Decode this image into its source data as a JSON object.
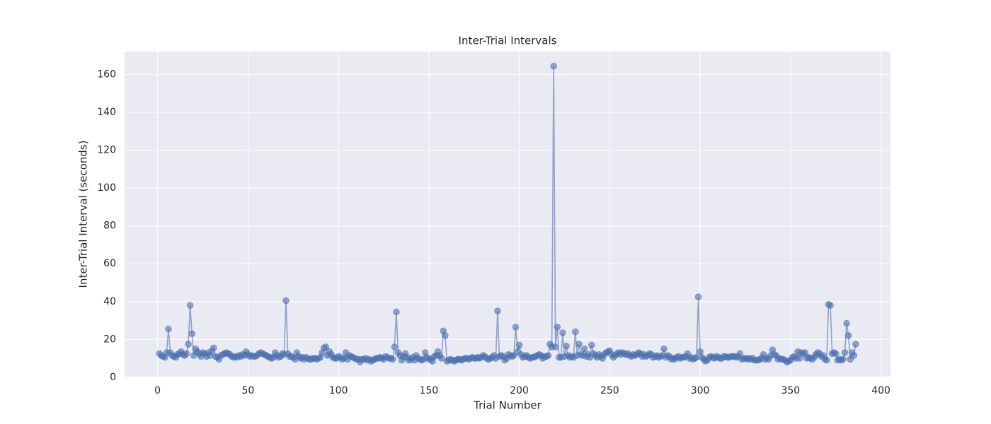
{
  "chart_data": {
    "type": "line",
    "title": "Inter-Trial Intervals",
    "x_label": "Trial Number",
    "y_label": "Inter-Trial Interval (seconds)",
    "xlim": [
      -18.25,
      405.25
    ],
    "ylim": [
      0.3,
      172.2
    ],
    "xticks": [
      0,
      50,
      100,
      150,
      200,
      250,
      300,
      350,
      400
    ],
    "yticks": [
      0,
      20,
      40,
      60,
      80,
      100,
      120,
      140,
      160
    ],
    "grid": true,
    "background": "#eaeaf2",
    "x": [
      1,
      2,
      3,
      4,
      5,
      6,
      7,
      8,
      9,
      10,
      11,
      12,
      13,
      14,
      15,
      16,
      17,
      18,
      19,
      20,
      21,
      22,
      23,
      24,
      25,
      26,
      27,
      28,
      29,
      30,
      31,
      32,
      33,
      34,
      35,
      36,
      37,
      38,
      39,
      40,
      41,
      42,
      43,
      44,
      45,
      46,
      47,
      48,
      49,
      50,
      51,
      52,
      53,
      54,
      55,
      56,
      57,
      58,
      59,
      60,
      61,
      62,
      63,
      64,
      65,
      66,
      67,
      68,
      69,
      70,
      71,
      72,
      73,
      74,
      75,
      76,
      77,
      78,
      79,
      80,
      81,
      82,
      83,
      84,
      85,
      86,
      87,
      88,
      89,
      90,
      91,
      92,
      93,
      94,
      95,
      96,
      97,
      98,
      99,
      100,
      101,
      102,
      103,
      104,
      105,
      106,
      107,
      108,
      109,
      110,
      111,
      112,
      113,
      114,
      115,
      116,
      117,
      118,
      119,
      120,
      121,
      122,
      123,
      124,
      125,
      126,
      127,
      128,
      129,
      130,
      131,
      132,
      133,
      134,
      135,
      136,
      137,
      138,
      139,
      140,
      141,
      142,
      143,
      144,
      145,
      146,
      147,
      148,
      149,
      150,
      151,
      152,
      153,
      154,
      155,
      156,
      157,
      158,
      159,
      160,
      161,
      162,
      163,
      164,
      165,
      166,
      167,
      168,
      169,
      170,
      171,
      172,
      173,
      174,
      175,
      176,
      177,
      178,
      179,
      180,
      181,
      182,
      183,
      184,
      185,
      186,
      187,
      188,
      189,
      190,
      191,
      192,
      193,
      194,
      195,
      196,
      197,
      198,
      199,
      200,
      201,
      202,
      203,
      204,
      205,
      206,
      207,
      208,
      209,
      210,
      211,
      212,
      213,
      214,
      215,
      216,
      217,
      218,
      219,
      220,
      221,
      222,
      223,
      224,
      225,
      226,
      227,
      228,
      229,
      230,
      231,
      232,
      233,
      234,
      235,
      236,
      237,
      238,
      239,
      240,
      241,
      242,
      243,
      244,
      245,
      246,
      247,
      248,
      249,
      250,
      251,
      252,
      253,
      254,
      255,
      256,
      257,
      258,
      259,
      260,
      261,
      262,
      263,
      264,
      265,
      266,
      267,
      268,
      269,
      270,
      271,
      272,
      273,
      274,
      275,
      276,
      277,
      278,
      279,
      280,
      281,
      282,
      283,
      284,
      285,
      286,
      287,
      288,
      289,
      290,
      291,
      292,
      293,
      294,
      295,
      296,
      297,
      298,
      299,
      300,
      301,
      302,
      303,
      304,
      305,
      306,
      307,
      308,
      309,
      310,
      311,
      312,
      313,
      314,
      315,
      316,
      317,
      318,
      319,
      320,
      321,
      322,
      323,
      324,
      325,
      326,
      327,
      328,
      329,
      330,
      331,
      332,
      333,
      334,
      335,
      336,
      337,
      338,
      339,
      340,
      341,
      342,
      343,
      344,
      345,
      346,
      347,
      348,
      349,
      350,
      351,
      352,
      353,
      354,
      355,
      356,
      357,
      358,
      359,
      360,
      361,
      362,
      363,
      364,
      365,
      366,
      367,
      368,
      369,
      370,
      371,
      372,
      373,
      374,
      375,
      376,
      377,
      378,
      379,
      380,
      381,
      382,
      383,
      384,
      385,
      386
    ],
    "series": [
      {
        "color": "#4c72b0",
        "values": [
          12.5,
          11.5,
          11,
          10.5,
          13,
          25.5,
          13,
          11.5,
          11,
          10.5,
          12,
          12.5,
          13.5,
          12,
          11.5,
          12.5,
          17.5,
          38,
          23,
          11.5,
          15,
          13.5,
          12.5,
          11,
          13,
          12.5,
          11,
          13,
          11.5,
          14,
          15.5,
          11,
          10.5,
          9.5,
          11.5,
          12,
          12.5,
          13,
          12.5,
          12,
          11,
          10.5,
          11,
          10.5,
          11.5,
          11,
          12,
          11.5,
          13.5,
          12,
          11,
          11.5,
          11,
          11,
          11.5,
          12.5,
          13,
          12.5,
          12,
          11.5,
          11,
          10.5,
          10,
          10.5,
          13,
          11.5,
          10.5,
          11,
          12.5,
          12,
          40.5,
          12.5,
          11,
          11,
          10.5,
          9.5,
          13,
          11,
          10,
          10.5,
          9.5,
          10.5,
          10,
          9.5,
          9.5,
          10,
          10,
          9.5,
          10,
          10.5,
          13,
          15.5,
          16,
          11.5,
          13.5,
          12,
          10.5,
          10,
          10,
          11,
          10.5,
          9.5,
          10,
          13,
          9.5,
          11.5,
          11,
          10.5,
          10,
          9.5,
          9.5,
          8,
          9.5,
          9.5,
          10,
          9,
          9.5,
          8.5,
          9,
          9.5,
          10,
          10,
          10.5,
          10,
          9.5,
          11,
          10.5,
          10,
          10,
          9.5,
          16,
          34.5,
          13,
          11.5,
          9,
          11,
          12.5,
          10.5,
          9,
          9.5,
          10.5,
          9,
          11.5,
          10,
          9.5,
          9,
          9.5,
          13,
          10.5,
          9.5,
          9.5,
          8.5,
          11,
          11.5,
          13.5,
          11.5,
          10,
          24.5,
          22,
          8.5,
          9,
          9.5,
          9,
          8.5,
          9,
          9.5,
          9.5,
          9,
          9.5,
          10,
          10,
          9.5,
          10,
          10.5,
          10,
          10,
          10.5,
          10,
          10.5,
          11.5,
          11,
          10,
          9.5,
          10,
          10.5,
          11.5,
          10,
          35,
          11,
          11.5,
          11,
          9,
          10,
          12,
          11.5,
          11,
          11.5,
          26.5,
          13.5,
          17,
          12,
          10.5,
          11,
          11.5,
          10.5,
          10,
          10.5,
          10.5,
          11,
          11.5,
          12,
          11.5,
          10,
          11,
          11,
          11.5,
          17.5,
          16,
          164.5,
          16,
          26.5,
          10.5,
          10.5,
          23.5,
          11,
          16.5,
          11.5,
          10.5,
          11,
          10.5,
          24,
          11.5,
          17.5,
          12,
          11.5,
          15,
          11,
          12,
          10.5,
          17,
          12.5,
          11.5,
          10.5,
          12,
          11,
          10,
          12,
          13,
          13.5,
          14,
          12,
          10.5,
          11.5,
          12.5,
          13,
          12,
          13,
          12.5,
          12,
          12.5,
          11.5,
          11,
          12,
          11.5,
          12,
          13,
          12.5,
          11,
          12,
          11,
          11.5,
          12.5,
          12,
          10.5,
          11,
          11.5,
          10.5,
          11,
          11.5,
          15,
          10.5,
          11.5,
          11,
          9.5,
          10,
          9.5,
          10.5,
          11,
          10,
          10.5,
          10.5,
          11,
          12.5,
          10,
          10.5,
          9.5,
          10,
          10.5,
          42.5,
          13.5,
          10.5,
          9.5,
          8.5,
          9,
          10.5,
          11,
          10.5,
          10,
          11,
          10.5,
          10,
          10,
          11,
          11,
          10.5,
          10.5,
          11,
          11,
          11,
          10.5,
          11,
          12.5,
          9.5,
          10,
          10,
          9.5,
          10,
          9.5,
          10,
          9,
          9,
          9,
          9.5,
          10,
          12,
          9.5,
          10,
          9.5,
          11.5,
          14.5,
          12,
          11.5,
          9.5,
          10,
          9.5,
          9.5,
          9,
          8,
          8.5,
          9,
          10.5,
          11,
          10,
          13.5,
          10,
          13,
          12.5,
          13,
          10,
          10.5,
          10,
          9.5,
          10.5,
          12,
          13,
          12.5,
          11,
          11.5,
          9.5,
          9,
          38.5,
          38,
          12.5,
          13,
          12.5,
          9,
          9.5,
          9,
          9.5,
          13,
          28.5,
          22,
          9.5,
          13,
          11.5,
          17.5
        ]
      }
    ]
  }
}
